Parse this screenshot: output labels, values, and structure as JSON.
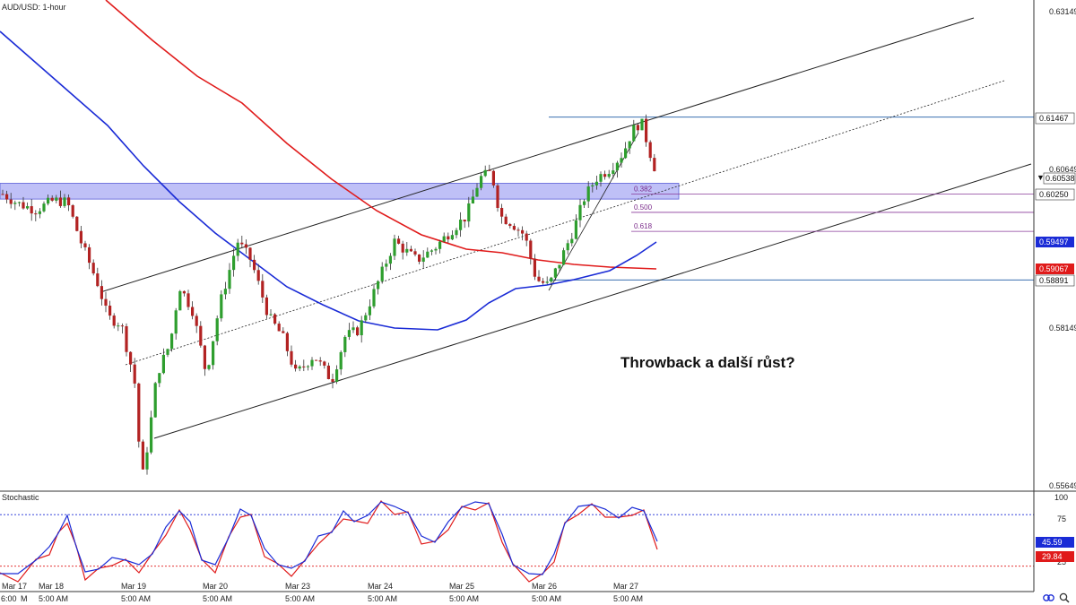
{
  "chart_data": [
    {
      "type": "candlestick",
      "title": "AUD/USD: 1-hour",
      "timeframe": "1-hour",
      "ylim": [
        0.555,
        0.633
      ],
      "y_ticks": [
        "0.63149",
        "0.60649",
        "0.58149",
        "0.55649"
      ],
      "x_ticks": [
        "Mar 17",
        "Mar 18",
        "Mar 19",
        "Mar 20",
        "Mar 23",
        "Mar 24",
        "Mar 25",
        "Mar 26",
        "Mar 27"
      ],
      "x_subticks": [
        "6:00",
        "M",
        "5:00 AM",
        "5:00 AM",
        "5:00 AM",
        "5:00 AM",
        "5:00 AM",
        "5:00 AM",
        "5:00 AM",
        "5:00 AM"
      ],
      "price_labels": [
        {
          "value": "0.61467",
          "style": "light"
        },
        {
          "value": "0.60538",
          "style": "light"
        },
        {
          "value": "0.60250",
          "style": "light"
        },
        {
          "value": "0.59497",
          "style": "blue",
          "color": "#1a2bd6"
        },
        {
          "value": "0.59067",
          "style": "red",
          "color": "#e01a1a"
        },
        {
          "value": "0.58891",
          "style": "light"
        }
      ],
      "support_zone": {
        "from": 0.6017,
        "to": 0.6042,
        "color": "#8a8cf0"
      },
      "horizontal_lines": [
        {
          "value": 0.61467,
          "color": "#3a6fb0"
        },
        {
          "value": 0.58891,
          "color": "#3a6fb0"
        }
      ],
      "fibonacci": [
        {
          "level": "0.382",
          "value": 0.6025
        },
        {
          "level": "0.500",
          "value": 0.5996
        },
        {
          "level": "0.618",
          "value": 0.5966
        }
      ],
      "moving_averages": [
        {
          "color": "#e01a1a",
          "last": 0.59067
        },
        {
          "color": "#1a2bd6",
          "last": 0.59497
        }
      ],
      "candle_colors": {
        "up": "#2e9e2e",
        "down": "#b22222"
      },
      "annotation": "Throwback a další růst?"
    },
    {
      "type": "line",
      "title": "Stochastic",
      "ylim": [
        0,
        100
      ],
      "y_ticks": [
        "100",
        "75",
        "50",
        "25"
      ],
      "levels": [
        {
          "value": 80,
          "color": "#1a2bd6"
        },
        {
          "value": 20,
          "color": "#e01a1a"
        }
      ],
      "series": [
        {
          "color": "#1a2bd6",
          "last": "45.59"
        },
        {
          "color": "#e01a1a",
          "last": "29.84"
        }
      ]
    }
  ]
}
